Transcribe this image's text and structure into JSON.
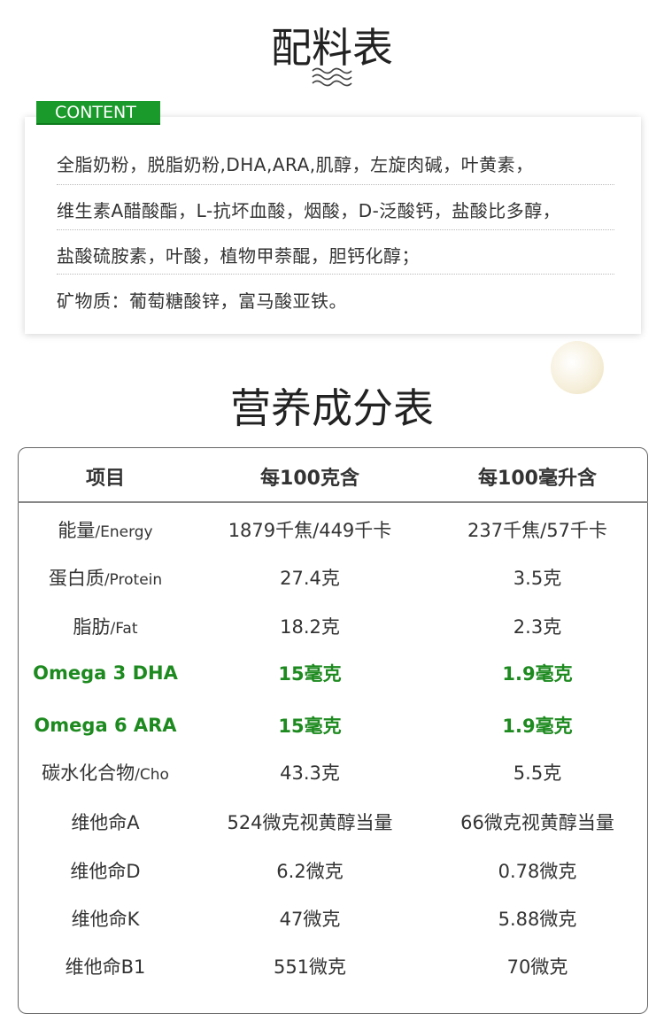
{
  "ingredients": {
    "title": "配料表",
    "tag": "CONTENT",
    "lines": [
      "全脂奶粉，脱脂奶粉,DHA,ARA,肌醇，左旋肉碱，叶黄素，",
      "维生素A醋酸酯，L-抗坏血酸，烟酸，D-泛酸钙，盐酸比多醇，",
      "盐酸硫胺素，叶酸，植物甲萘醌，胆钙化醇；",
      "矿物质：葡萄糖酸锌，富马酸亚铁。"
    ]
  },
  "nutrition": {
    "title": "营养成分表",
    "headers": [
      "项目",
      "每100克含",
      "每100毫升含"
    ],
    "rows": [
      {
        "name": "能量",
        "en": "/Energy",
        "per100g": "1879千焦/449千卡",
        "per100ml": "237千焦/57千卡"
      },
      {
        "name": "蛋白质",
        "en": "/Protein",
        "per100g": "27.4克",
        "per100ml": "3.5克"
      },
      {
        "name": "脂肪",
        "en": "/Fat",
        "per100g": "18.2克",
        "per100ml": "2.3克"
      },
      {
        "name": "Omega 3 DHA",
        "en": "",
        "per100g": "15毫克",
        "per100ml": "1.9毫克",
        "highlight": true
      },
      {
        "name": "Omega 6 ARA",
        "en": "",
        "per100g": "15毫克",
        "per100ml": "1.9毫克",
        "highlight": true
      },
      {
        "name": "碳水化合物",
        "en": "/Cho",
        "per100g": "43.3克",
        "per100ml": "5.5克"
      },
      {
        "name": "维他命A",
        "en": "",
        "per100g": "524微克视黄醇当量",
        "per100ml": "66微克视黄醇当量"
      },
      {
        "name": "维他命D",
        "en": "",
        "per100g": "6.2微克",
        "per100ml": "0.78微克"
      },
      {
        "name": "维他命K",
        "en": "",
        "per100g": "47微克",
        "per100ml": "5.88微克"
      },
      {
        "name": "维他命B1",
        "en": "",
        "per100g": "551微克",
        "per100ml": "70微克"
      }
    ]
  },
  "colors": {
    "accent": "#1a9a2a",
    "highlight_text": "#1d8a1f"
  }
}
